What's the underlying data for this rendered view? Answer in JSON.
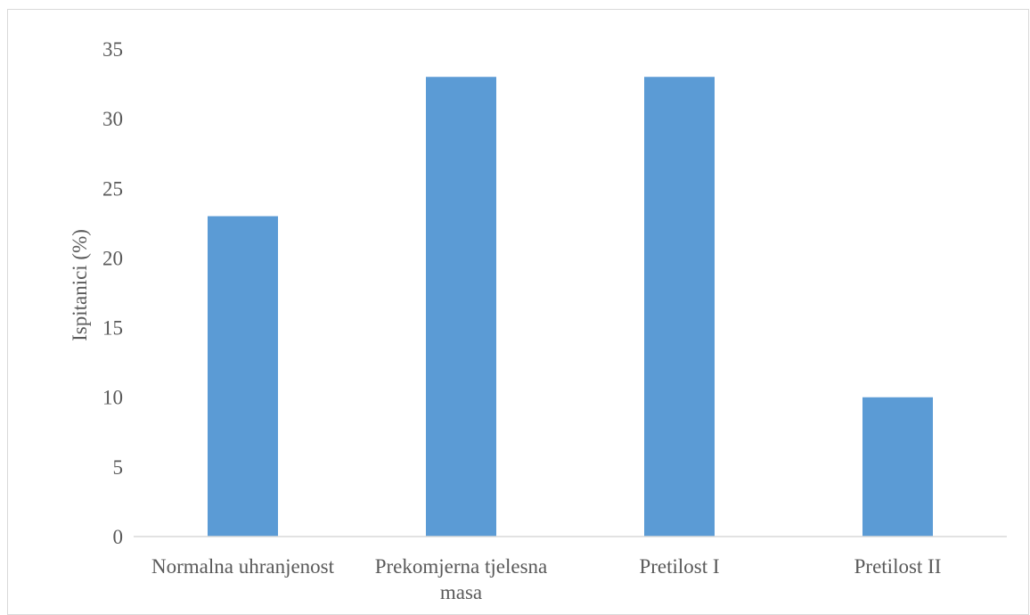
{
  "chart_data": {
    "type": "bar",
    "title": "",
    "xlabel": "",
    "ylabel": "Ispitanici (%)",
    "categories": [
      [
        "Normalna uhranjenost"
      ],
      [
        "Prekomjerna tjelesna",
        "masa"
      ],
      [
        "Pretilost I"
      ],
      [
        "Pretilost II"
      ]
    ],
    "values": [
      23,
      33,
      33,
      10
    ],
    "ylim": [
      0,
      35
    ],
    "yticks": [
      0,
      5,
      10,
      15,
      20,
      25,
      30,
      35
    ],
    "grid": false,
    "legend": "none",
    "bar_color": "#5b9bd5",
    "axis_color": "#d9d9d9",
    "text_color": "#595959"
  }
}
